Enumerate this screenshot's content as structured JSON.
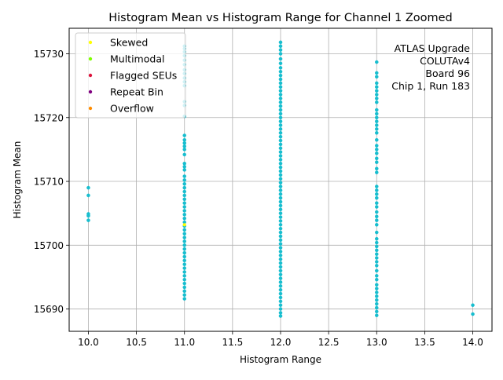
{
  "chart_data": {
    "type": "scatter",
    "title": "Histogram Mean vs Histogram Range for Channel 1 Zoomed",
    "xlabel": "Histogram Range",
    "ylabel": "Histogram Mean",
    "xlim": [
      9.8,
      14.2
    ],
    "ylim": [
      15686.5,
      15734.0
    ],
    "x_ticks": [
      10.0,
      10.5,
      11.0,
      11.5,
      12.0,
      12.5,
      13.0,
      13.5,
      14.0
    ],
    "x_tick_labels": [
      "10.0",
      "10.5",
      "11.0",
      "11.5",
      "12.0",
      "12.5",
      "13.0",
      "13.5",
      "14.0"
    ],
    "y_ticks": [
      15690,
      15700,
      15710,
      15720,
      15730
    ],
    "y_tick_labels": [
      "15690",
      "15700",
      "15710",
      "15720",
      "15730"
    ],
    "grid": true,
    "legend_position": "top-left",
    "legend": [
      {
        "label": "Skewed",
        "color": "#ffff00"
      },
      {
        "label": "Multimodal",
        "color": "#7fff00"
      },
      {
        "label": "Flagged SEUs",
        "color": "#dc143c"
      },
      {
        "label": "Repeat Bin",
        "color": "#800080"
      },
      {
        "label": "Overflow",
        "color": "#ff8c00"
      }
    ],
    "annotation_lines": [
      "ATLAS Upgrade",
      "COLUTAv4",
      "Board 96",
      "Chip 1, Run 183"
    ],
    "point_color": "#17becf",
    "series": [
      {
        "x": 10.0,
        "y": [
          15709.0,
          15707.8,
          15704.9,
          15704.6,
          15703.9
        ]
      },
      {
        "x": 11.0,
        "y": [
          15731.2,
          15730.8,
          15730.3,
          15729.7,
          15729.0,
          15728.3,
          15727.5,
          15726.9,
          15726.2,
          15725.6,
          15725.0,
          15722.5,
          15721.9,
          15720.2,
          15717.2,
          15716.5,
          15716.0,
          15715.5,
          15715.0,
          15714.2,
          15712.8,
          15712.3,
          15711.8,
          15710.8,
          15710.2,
          15709.6,
          15709.0,
          15708.4,
          15707.8,
          15707.2,
          15706.6,
          15706.0,
          15705.4,
          15704.8,
          15704.2,
          15703.6,
          15703.0,
          15702.4,
          15701.8,
          15701.2,
          15700.6,
          15700.0,
          15699.4,
          15698.8,
          15698.2,
          15697.6,
          15697.0,
          15696.4,
          15695.8,
          15695.2,
          15694.6,
          15694.0,
          15693.4,
          15692.8,
          15692.2,
          15691.6
        ]
      },
      {
        "x": 12.0,
        "y": [
          15731.8,
          15731.2,
          15730.6,
          15730.0,
          15729.2,
          15728.5,
          15727.8,
          15727.2,
          15726.6,
          15726.0,
          15725.4,
          15724.8,
          15724.2,
          15723.6,
          15723.0,
          15722.4,
          15721.8,
          15721.2,
          15720.6,
          15720.0,
          15719.4,
          15718.8,
          15718.2,
          15717.6,
          15717.0,
          15716.4,
          15715.8,
          15715.2,
          15714.6,
          15714.0,
          15713.4,
          15712.8,
          15712.2,
          15711.6,
          15711.0,
          15710.4,
          15709.8,
          15709.2,
          15708.6,
          15708.0,
          15707.4,
          15706.8,
          15706.2,
          15705.6,
          15705.0,
          15704.4,
          15703.8,
          15703.2,
          15702.6,
          15702.0,
          15701.4,
          15700.8,
          15700.2,
          15699.6,
          15699.0,
          15698.4,
          15697.8,
          15697.2,
          15696.6,
          15696.0,
          15695.4,
          15694.8,
          15694.2,
          15693.6,
          15693.0,
          15692.4,
          15691.8,
          15691.2,
          15690.6,
          15690.0,
          15689.4,
          15688.9
        ]
      },
      {
        "x": 13.0,
        "y": [
          15728.7,
          15727.0,
          15726.4,
          15725.4,
          15724.8,
          15724.2,
          15723.6,
          15723.0,
          15722.4,
          15721.2,
          15720.6,
          15720.0,
          15719.4,
          15718.8,
          15718.2,
          15717.6,
          15716.5,
          15715.6,
          15715.0,
          15714.4,
          15713.6,
          15713.0,
          15712.0,
          15711.4,
          15709.2,
          15708.6,
          15708.0,
          15707.4,
          15706.6,
          15706.0,
          15705.2,
          15704.5,
          15703.9,
          15703.2,
          15702.0,
          15701.0,
          15700.4,
          15699.8,
          15699.2,
          15698.6,
          15698.0,
          15697.4,
          15696.8,
          15696.0,
          15695.2,
          15694.6,
          15693.8,
          15693.2,
          15692.6,
          15692.0,
          15691.4,
          15690.8,
          15690.2,
          15689.6,
          15689.0
        ]
      },
      {
        "x": 14.0,
        "y": [
          15690.6,
          15689.2
        ]
      }
    ],
    "highlight_points": [
      {
        "x": 11.0,
        "y": 15703.2,
        "color": "#ffff00"
      }
    ]
  }
}
